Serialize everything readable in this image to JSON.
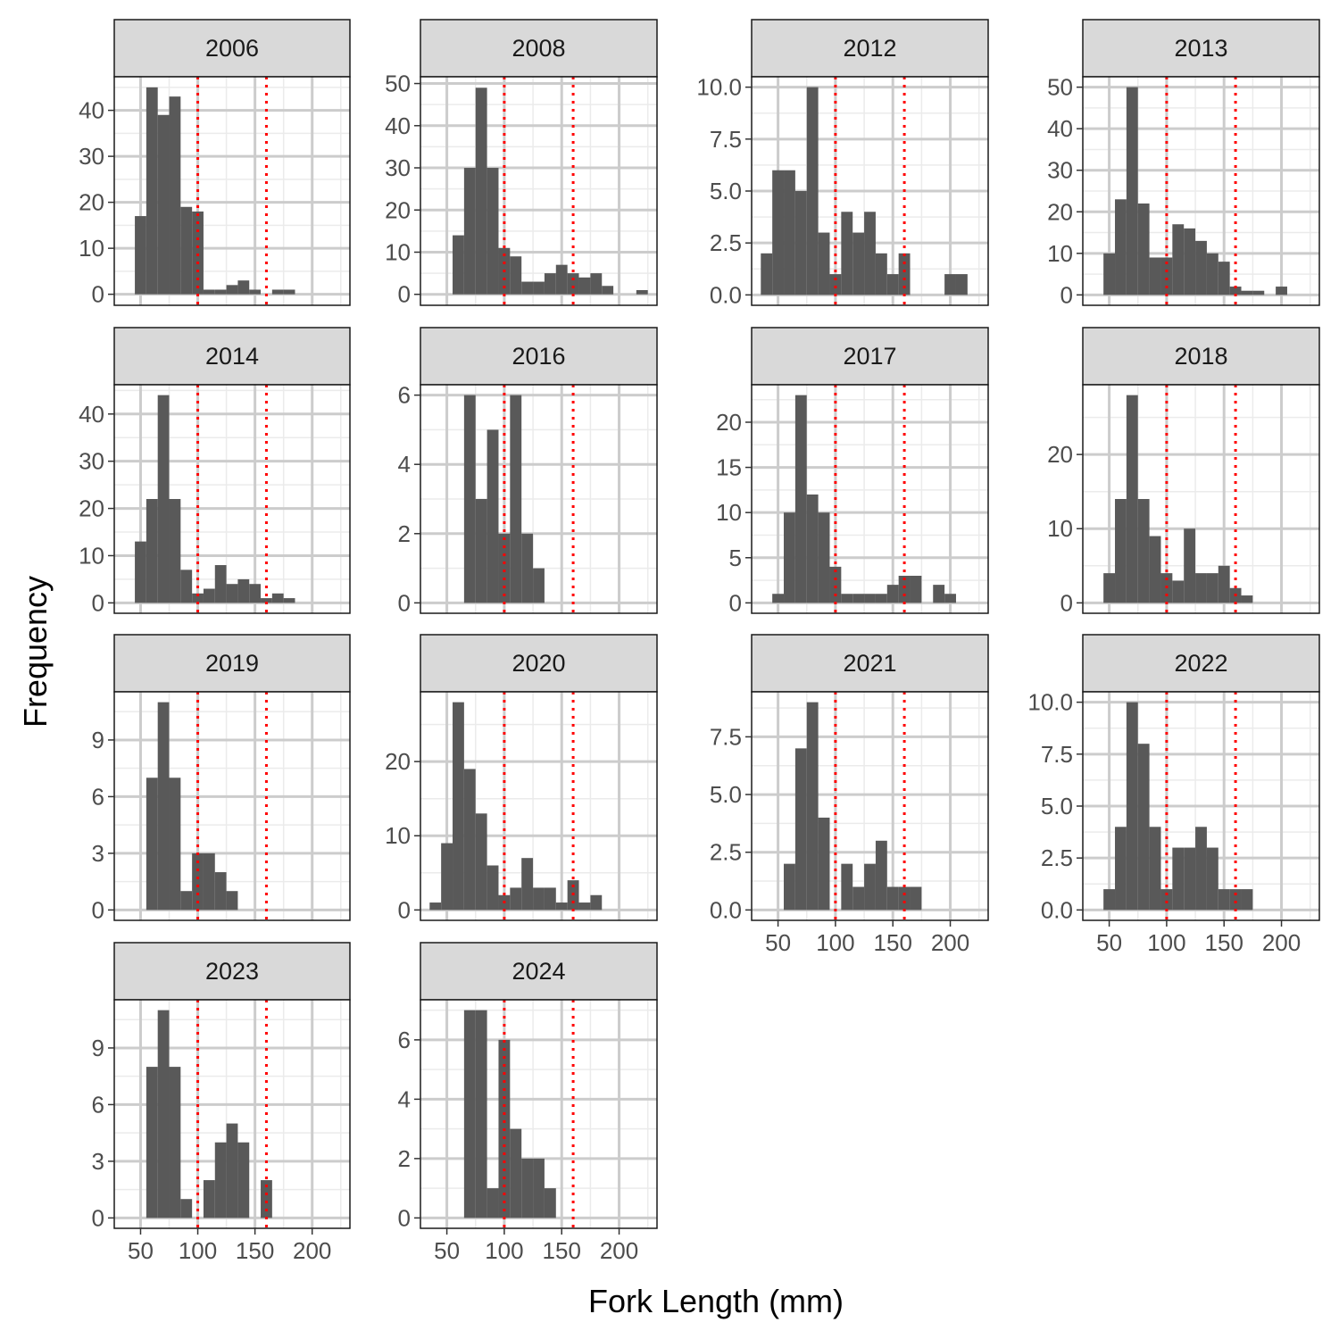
{
  "figure": {
    "xlabel": "Fork Length (mm)",
    "ylabel": "Frequency"
  },
  "colors": {
    "bar": "#595959",
    "reference_line": "#ff0000",
    "strip_fill": "#d9d9d9",
    "grid_major": "#cccccc",
    "grid_minor": "#ebebeb"
  },
  "chart_data": {
    "type": "histogram",
    "xlabel": "Fork Length (mm)",
    "ylabel": "Frequency",
    "bin_width": 10,
    "xlim": [
      27,
      233
    ],
    "x_ticks": [
      50,
      100,
      150,
      200
    ],
    "reference_lines_x": [
      100,
      160
    ],
    "reference_line_style": "dotted",
    "grid": true,
    "facets": [
      {
        "label": "2006",
        "bin_centers": [
          50,
          60,
          70,
          80,
          90,
          100,
          110,
          120,
          130,
          140,
          150,
          160,
          170,
          180
        ],
        "counts": [
          17,
          45,
          39,
          43,
          19,
          18,
          1,
          1,
          2,
          3,
          1,
          0,
          1,
          1
        ],
        "ylim": [
          -2.4,
          47.3
        ],
        "y_ticks": [
          0,
          10,
          20,
          30,
          40
        ],
        "y_tick_labels": [
          "0",
          "10",
          "20",
          "30",
          "40"
        ]
      },
      {
        "label": "2008",
        "bin_centers": [
          60,
          70,
          80,
          90,
          100,
          110,
          120,
          130,
          140,
          150,
          160,
          170,
          180,
          190,
          200,
          210,
          220
        ],
        "counts": [
          14,
          30,
          49,
          30,
          11,
          9,
          3,
          3,
          5,
          7,
          5,
          4,
          5,
          2,
          0,
          0,
          1
        ],
        "ylim": [
          -2.6,
          51.6
        ],
        "y_ticks": [
          0,
          10,
          20,
          30,
          40,
          50
        ],
        "y_tick_labels": [
          "0",
          "10",
          "20",
          "30",
          "40",
          "50"
        ]
      },
      {
        "label": "2012",
        "bin_centers": [
          40,
          50,
          60,
          70,
          80,
          90,
          100,
          110,
          120,
          130,
          140,
          150,
          160,
          170,
          180,
          190,
          200,
          210
        ],
        "counts": [
          2,
          6,
          6,
          5,
          10,
          3,
          1,
          4,
          3,
          4,
          2,
          1,
          2,
          0,
          0,
          0,
          1,
          1
        ],
        "ylim": [
          -0.5,
          10.5
        ],
        "y_ticks": [
          0,
          2.5,
          5,
          7.5,
          10
        ],
        "y_tick_labels": [
          "0.0",
          "2.5",
          "5.0",
          "7.5",
          "10.0"
        ]
      },
      {
        "label": "2013",
        "bin_centers": [
          50,
          60,
          70,
          80,
          90,
          100,
          110,
          120,
          130,
          140,
          150,
          160,
          170,
          180,
          190,
          200
        ],
        "counts": [
          10,
          23,
          50,
          22,
          9,
          9,
          17,
          16,
          13,
          10,
          8,
          2,
          1,
          1,
          0,
          2
        ],
        "ylim": [
          -2.5,
          52.5
        ],
        "y_ticks": [
          0,
          10,
          20,
          30,
          40,
          50
        ],
        "y_tick_labels": [
          "0",
          "10",
          "20",
          "30",
          "40",
          "50"
        ]
      },
      {
        "label": "2014",
        "bin_centers": [
          50,
          60,
          70,
          80,
          90,
          100,
          110,
          120,
          130,
          140,
          150,
          160,
          170,
          180
        ],
        "counts": [
          13,
          22,
          44,
          22,
          7,
          2,
          3,
          8,
          4,
          5,
          4,
          1,
          2,
          1
        ],
        "ylim": [
          -2.2,
          46.2
        ],
        "y_ticks": [
          0,
          10,
          20,
          30,
          40
        ],
        "y_tick_labels": [
          "0",
          "10",
          "20",
          "30",
          "40"
        ]
      },
      {
        "label": "2016",
        "bin_centers": [
          70,
          80,
          90,
          100,
          110,
          120,
          130
        ],
        "counts": [
          6,
          3,
          5,
          2,
          6,
          2,
          1
        ],
        "ylim": [
          -0.3,
          6.3
        ],
        "y_ticks": [
          0,
          2,
          4,
          6
        ],
        "y_tick_labels": [
          "0",
          "2",
          "4",
          "6"
        ]
      },
      {
        "label": "2017",
        "bin_centers": [
          50,
          60,
          70,
          80,
          90,
          100,
          110,
          120,
          130,
          140,
          150,
          160,
          170,
          180,
          190,
          200
        ],
        "counts": [
          1,
          10,
          23,
          12,
          10,
          4,
          1,
          1,
          1,
          1,
          2,
          3,
          3,
          0,
          2,
          1
        ],
        "ylim": [
          -1.15,
          24.15
        ],
        "y_ticks": [
          0,
          5,
          10,
          15,
          20
        ],
        "y_tick_labels": [
          "0",
          "5",
          "10",
          "15",
          "20"
        ]
      },
      {
        "label": "2018",
        "bin_centers": [
          50,
          60,
          70,
          80,
          90,
          100,
          110,
          120,
          130,
          140,
          150,
          160,
          170
        ],
        "counts": [
          4,
          14,
          28,
          14,
          9,
          4,
          3,
          10,
          4,
          4,
          5,
          2,
          1
        ],
        "ylim": [
          -1.4,
          29.4
        ],
        "y_ticks": [
          0,
          10,
          20
        ],
        "y_tick_labels": [
          "0",
          "10",
          "20"
        ]
      },
      {
        "label": "2019",
        "bin_centers": [
          60,
          70,
          80,
          90,
          100,
          110,
          120,
          130,
          140
        ],
        "counts": [
          7,
          11,
          7,
          1,
          3,
          3,
          2,
          1,
          0
        ],
        "ylim": [
          -0.55,
          11.55
        ],
        "y_ticks": [
          0,
          3,
          6,
          9
        ],
        "y_tick_labels": [
          "0",
          "3",
          "6",
          "9"
        ]
      },
      {
        "label": "2020",
        "bin_centers": [
          40,
          50,
          60,
          70,
          80,
          90,
          100,
          110,
          120,
          130,
          140,
          150,
          160,
          170,
          180,
          190
        ],
        "counts": [
          1,
          9,
          28,
          19,
          13,
          6,
          2,
          3,
          7,
          3,
          3,
          1,
          4,
          1,
          2,
          0
        ],
        "ylim": [
          -1.4,
          29.4
        ],
        "y_ticks": [
          0,
          10,
          20
        ],
        "y_tick_labels": [
          "0",
          "10",
          "20"
        ]
      },
      {
        "label": "2021",
        "bin_centers": [
          60,
          70,
          80,
          90,
          100,
          110,
          120,
          130,
          140,
          150,
          160,
          170
        ],
        "counts": [
          2,
          7,
          9,
          4,
          0,
          2,
          1,
          2,
          3,
          1,
          1,
          1
        ],
        "ylim": [
          -0.45,
          9.45
        ],
        "y_ticks": [
          0,
          2.5,
          5,
          7.5
        ],
        "y_tick_labels": [
          "0.0",
          "2.5",
          "5.0",
          "7.5"
        ]
      },
      {
        "label": "2022",
        "bin_centers": [
          50,
          60,
          70,
          80,
          90,
          100,
          110,
          120,
          130,
          140,
          150,
          160,
          170
        ],
        "counts": [
          1,
          4,
          10,
          8,
          4,
          1,
          3,
          3,
          4,
          3,
          1,
          1,
          1
        ],
        "ylim": [
          -0.5,
          10.5
        ],
        "y_ticks": [
          0,
          2.5,
          5,
          7.5,
          10
        ],
        "y_tick_labels": [
          "0.0",
          "2.5",
          "5.0",
          "7.5",
          "10.0"
        ]
      },
      {
        "label": "2023",
        "bin_centers": [
          60,
          70,
          80,
          90,
          100,
          110,
          120,
          130,
          140,
          150,
          160
        ],
        "counts": [
          8,
          11,
          8,
          1,
          0,
          2,
          4,
          5,
          4,
          0,
          2
        ],
        "ylim": [
          -0.55,
          11.55
        ],
        "y_ticks": [
          0,
          3,
          6,
          9
        ],
        "y_tick_labels": [
          "0",
          "3",
          "6",
          "9"
        ]
      },
      {
        "label": "2024",
        "bin_centers": [
          70,
          80,
          90,
          100,
          110,
          120,
          130,
          140
        ],
        "counts": [
          7,
          7,
          1,
          6,
          3,
          2,
          2,
          1
        ],
        "ylim": [
          -0.35,
          7.35
        ],
        "y_ticks": [
          0,
          2,
          4,
          6
        ],
        "y_tick_labels": [
          "0",
          "2",
          "4",
          "6"
        ]
      }
    ]
  }
}
